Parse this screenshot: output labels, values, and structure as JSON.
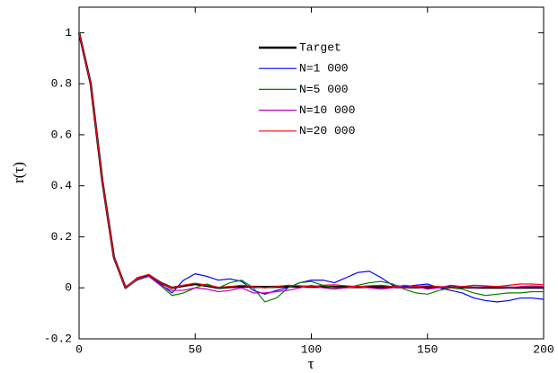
{
  "chart_data": {
    "type": "line",
    "x_label": "τ",
    "y_label": "r(τ)",
    "x": [
      0,
      5,
      10,
      15,
      20,
      25,
      30,
      35,
      40,
      45,
      50,
      55,
      60,
      65,
      70,
      75,
      80,
      85,
      90,
      95,
      100,
      105,
      110,
      115,
      120,
      125,
      130,
      135,
      140,
      145,
      150,
      155,
      160,
      165,
      170,
      175,
      180,
      185,
      190,
      195,
      200
    ],
    "series": [
      {
        "name": "Target",
        "color": "#000000",
        "values": [
          1,
          0.8,
          0.42,
          0.12,
          0.0,
          0.035,
          0.05,
          0.02,
          0.0,
          0.008,
          0.015,
          0.008,
          0.0,
          0.003,
          0.005,
          0.004,
          0.003,
          0.004,
          0.005,
          0.005,
          0.004,
          0.004,
          0.004,
          0.003,
          0.003,
          0.003,
          0.003,
          0.003,
          0.002,
          0.002,
          0.002,
          0.002,
          0.002,
          0.002,
          0.001,
          0.001,
          0.001,
          0.001,
          0.001,
          0.001,
          0.001
        ]
      },
      {
        "name": "N=1 000",
        "color": "#0000ff",
        "values": [
          1,
          0.8,
          0.42,
          0.12,
          0.0,
          0.03,
          0.045,
          0.015,
          -0.02,
          0.03,
          0.055,
          0.045,
          0.03,
          0.035,
          0.025,
          -0.01,
          -0.025,
          -0.01,
          0.0,
          0.02,
          0.03,
          0.03,
          0.02,
          0.04,
          0.06,
          0.065,
          0.04,
          0.01,
          0.005,
          0.01,
          0.015,
          0.0,
          -0.01,
          -0.02,
          -0.04,
          -0.05,
          -0.055,
          -0.05,
          -0.04,
          -0.04,
          -0.045
        ]
      },
      {
        "name": "N=5 000",
        "color": "#008000",
        "values": [
          1,
          0.8,
          0.42,
          0.12,
          0.0,
          0.03,
          0.045,
          0.01,
          -0.03,
          -0.02,
          0.0,
          0.015,
          0.0,
          0.02,
          0.03,
          0.0,
          -0.055,
          -0.04,
          0.0,
          0.02,
          0.025,
          0.01,
          0.0,
          0.0,
          0.01,
          0.02,
          0.025,
          0.015,
          -0.005,
          -0.02,
          -0.025,
          -0.01,
          0.0,
          -0.005,
          -0.02,
          -0.03,
          -0.025,
          -0.02,
          -0.02,
          -0.015,
          -0.015
        ]
      },
      {
        "name": "N=10 000",
        "color": "#bf00bf",
        "values": [
          1,
          0.8,
          0.42,
          0.12,
          0.0,
          0.035,
          0.045,
          0.01,
          -0.01,
          -0.01,
          0.0,
          -0.005,
          -0.015,
          -0.01,
          0.0,
          -0.02,
          -0.02,
          -0.015,
          -0.01,
          0.0,
          0.01,
          0.0,
          -0.005,
          0.0,
          0.005,
          0.0,
          -0.005,
          0.0,
          0.01,
          0.005,
          -0.005,
          0.0,
          0.01,
          0.005,
          0.0,
          0.005,
          0.005,
          0.0,
          0.005,
          0.008,
          0.005
        ]
      },
      {
        "name": "N=20 000",
        "color": "#ff0000",
        "values": [
          1,
          0.8,
          0.42,
          0.12,
          0.0,
          0.04,
          0.052,
          0.02,
          0.0,
          0.01,
          0.018,
          0.01,
          0.002,
          0.005,
          0.01,
          0.005,
          0.0,
          0.005,
          0.01,
          0.008,
          0.005,
          0.01,
          0.012,
          0.008,
          0.005,
          0.008,
          0.01,
          0.005,
          0.0,
          0.005,
          0.008,
          0.005,
          0.0,
          0.005,
          0.01,
          0.008,
          0.005,
          0.01,
          0.015,
          0.015,
          0.012
        ]
      }
    ],
    "xlim": [
      0,
      200
    ],
    "ylim": [
      -0.2,
      1.1
    ],
    "xticks": [
      0,
      50,
      100,
      150,
      200
    ],
    "yticks": [
      -0.2,
      0,
      0.2,
      0.4,
      0.6,
      0.8,
      1
    ],
    "legend": "upper center"
  }
}
